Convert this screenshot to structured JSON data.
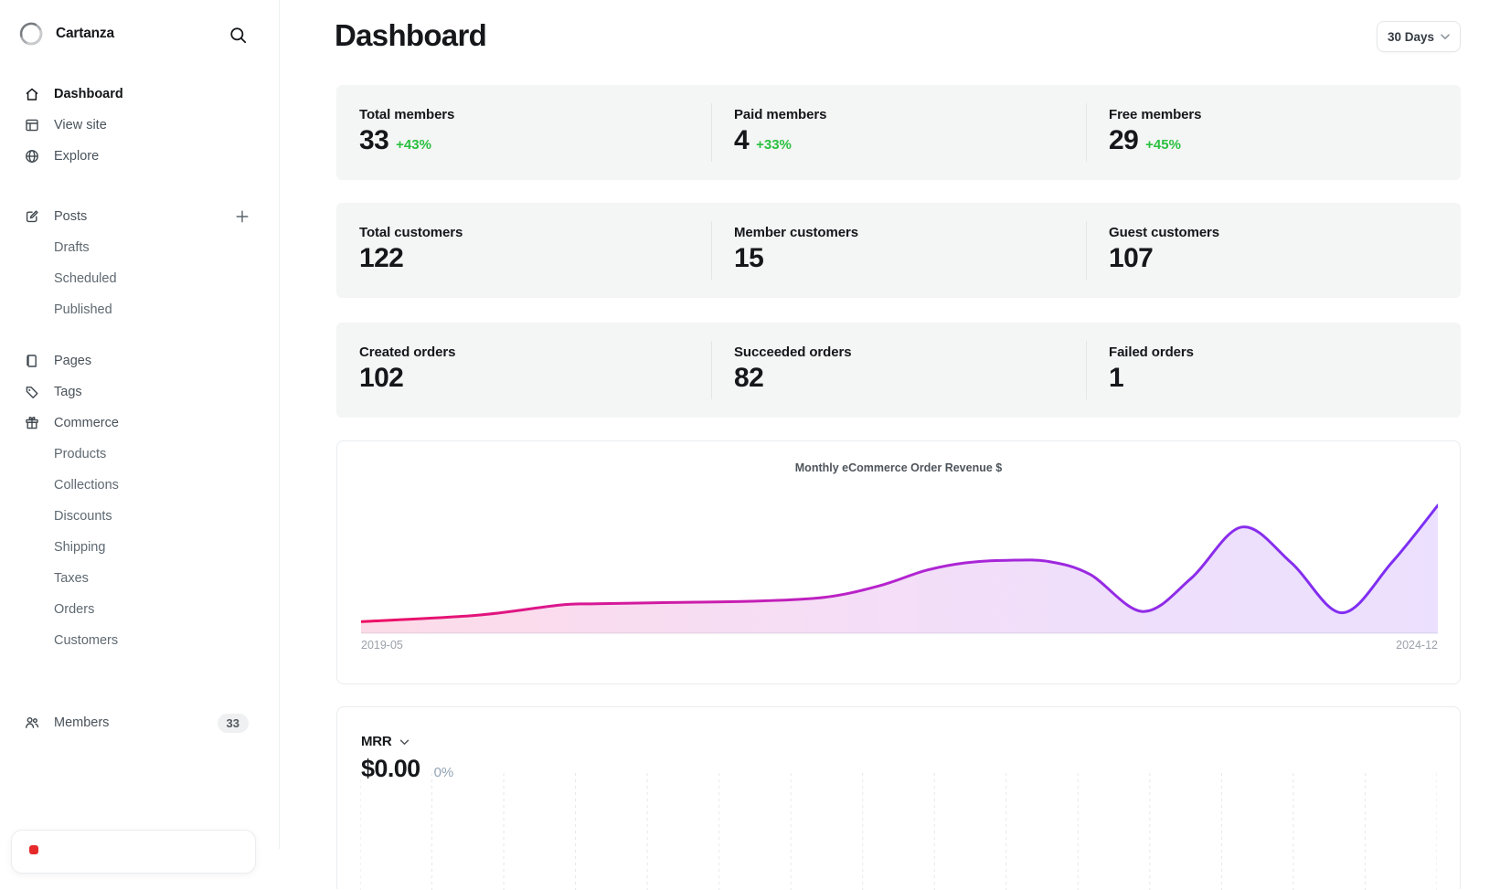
{
  "sidebar": {
    "brand": {
      "name": "Cartanza",
      "logo": "sketch-ring-logo"
    },
    "search": {
      "icon": "search-icon"
    },
    "nav_primary": [
      {
        "label": "Dashboard",
        "icon": "home-icon",
        "active": true
      },
      {
        "label": "View site",
        "icon": "browser-icon",
        "active": false
      },
      {
        "label": "Explore",
        "icon": "globe-icon",
        "active": false
      }
    ],
    "posts_group": {
      "label": "Posts",
      "icon": "edit-icon",
      "action_icon": "plus-icon",
      "items": [
        {
          "label": "Drafts"
        },
        {
          "label": "Scheduled"
        },
        {
          "label": "Published"
        }
      ]
    },
    "library_nav": [
      {
        "label": "Pages",
        "icon": "page-icon"
      },
      {
        "label": "Tags",
        "icon": "tag-icon"
      }
    ],
    "commerce_group": {
      "label": "Commerce",
      "icon": "gift-icon",
      "items": [
        {
          "label": "Products"
        },
        {
          "label": "Collections"
        },
        {
          "label": "Discounts"
        },
        {
          "label": "Shipping"
        },
        {
          "label": "Taxes"
        },
        {
          "label": "Orders"
        },
        {
          "label": "Customers"
        }
      ]
    },
    "members_item": {
      "label": "Members",
      "icon": "people-icon",
      "badge": "33"
    },
    "bottom_card": {
      "icon": "alert-red-icon"
    }
  },
  "header": {
    "title": "Dashboard",
    "range_selector": "30 Days"
  },
  "stats": {
    "delta_color": "#2ac03f",
    "rows": [
      {
        "cells": [
          {
            "label": "Total members",
            "value": "33",
            "delta": "+43%"
          },
          {
            "label": "Paid members",
            "value": "4",
            "delta": "+33%"
          },
          {
            "label": "Free members",
            "value": "29",
            "delta": "+45%"
          }
        ]
      },
      {
        "cells": [
          {
            "label": "Total customers",
            "value": "122"
          },
          {
            "label": "Member customers",
            "value": "15"
          },
          {
            "label": "Guest customers",
            "value": "107"
          }
        ]
      },
      {
        "cells": [
          {
            "label": "Created orders",
            "value": "102"
          },
          {
            "label": "Succeeded orders",
            "value": "82"
          },
          {
            "label": "Failed orders",
            "value": "1"
          }
        ]
      }
    ]
  },
  "chart_data": [
    {
      "type": "area",
      "title": "Monthly eCommerce Order Revenue $",
      "xlabel_start": "2019-05",
      "xlabel_end": "2024-12",
      "y_axis_ticks": "none shown (values normalized 0-1 of plot height)",
      "grid": false,
      "line_gradient": [
        "#ee0f62",
        "#d31a9e",
        "#b424d0",
        "#8e2ce9",
        "#7b2ff5"
      ],
      "series": [
        {
          "name": "Monthly eCommerce Order Revenue $",
          "points": [
            [
              0.0,
              0.09
            ],
            [
              0.107,
              0.14
            ],
            [
              0.184,
              0.22
            ],
            [
              0.218,
              0.23
            ],
            [
              0.286,
              0.24
            ],
            [
              0.362,
              0.25
            ],
            [
              0.43,
              0.28
            ],
            [
              0.481,
              0.37
            ],
            [
              0.524,
              0.49
            ],
            [
              0.561,
              0.55
            ],
            [
              0.6,
              0.57
            ],
            [
              0.639,
              0.56
            ],
            [
              0.677,
              0.46
            ],
            [
              0.726,
              0.17
            ],
            [
              0.771,
              0.43
            ],
            [
              0.818,
              0.83
            ],
            [
              0.864,
              0.55
            ],
            [
              0.911,
              0.16
            ],
            [
              0.957,
              0.55
            ],
            [
              1.0,
              1.0
            ]
          ]
        }
      ]
    },
    {
      "type": "line",
      "title": "MRR",
      "current_value": "$0.00",
      "change_pct": "0%",
      "series": [
        {
          "name": "MRR",
          "points": []
        }
      ],
      "grid": true,
      "gridline_count": 16,
      "grid_style": "vertical dashed"
    }
  ]
}
